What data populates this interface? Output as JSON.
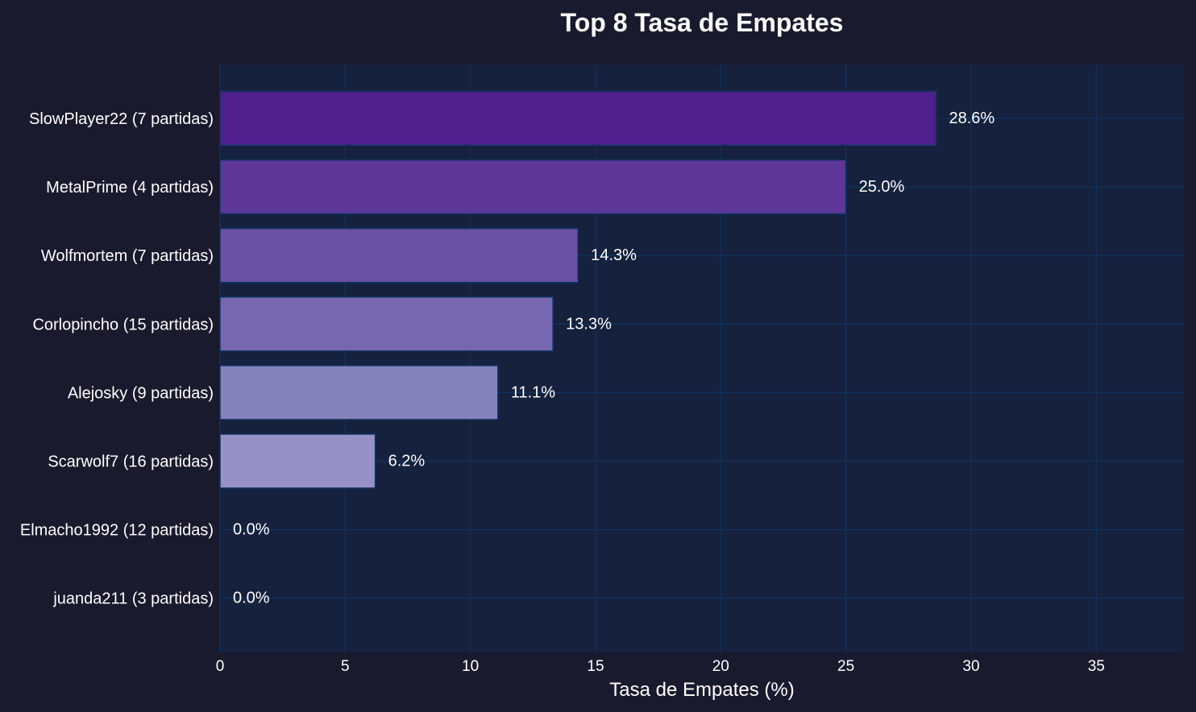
{
  "chart_data": {
    "type": "bar",
    "orientation": "horizontal",
    "title": "Top 8 Tasa de Empates",
    "xlabel": "Tasa de Empates (%)",
    "ylabel": "",
    "xlim": [
      0,
      38.5
    ],
    "xticks": [
      0,
      5,
      10,
      15,
      20,
      25,
      30,
      35
    ],
    "grid": true,
    "legend": "none",
    "categories": [
      "SlowPlayer22 (7 partidas)",
      "MetalPrime (4 partidas)",
      "Wolfmortem (7 partidas)",
      "Corlopincho (15 partidas)",
      "Alejosky (9 partidas)",
      "Scarwolf7 (16 partidas)",
      "Elmacho1992 (12 partidas)",
      "juanda211 (3 partidas)"
    ],
    "values": [
      28.6,
      25.0,
      14.3,
      13.3,
      11.1,
      6.2,
      0.0,
      0.0
    ],
    "value_labels": [
      "28.6%",
      "25.0%",
      "14.3%",
      "13.3%",
      "11.1%",
      "6.2%",
      "0.0%",
      "0.0%"
    ],
    "bar_colors": [
      "#4f1f8c",
      "#5c3797",
      "#6a51a3",
      "#7667b0",
      "#8582bc",
      "#9791c7",
      "#a9a5d1",
      "#bcbadc"
    ],
    "colors": {
      "background": "#1a1a2e",
      "plot_background": "#16213e",
      "grid": "#0f3460",
      "bar_edge": "#0f3460",
      "text": "#ffffff"
    }
  }
}
